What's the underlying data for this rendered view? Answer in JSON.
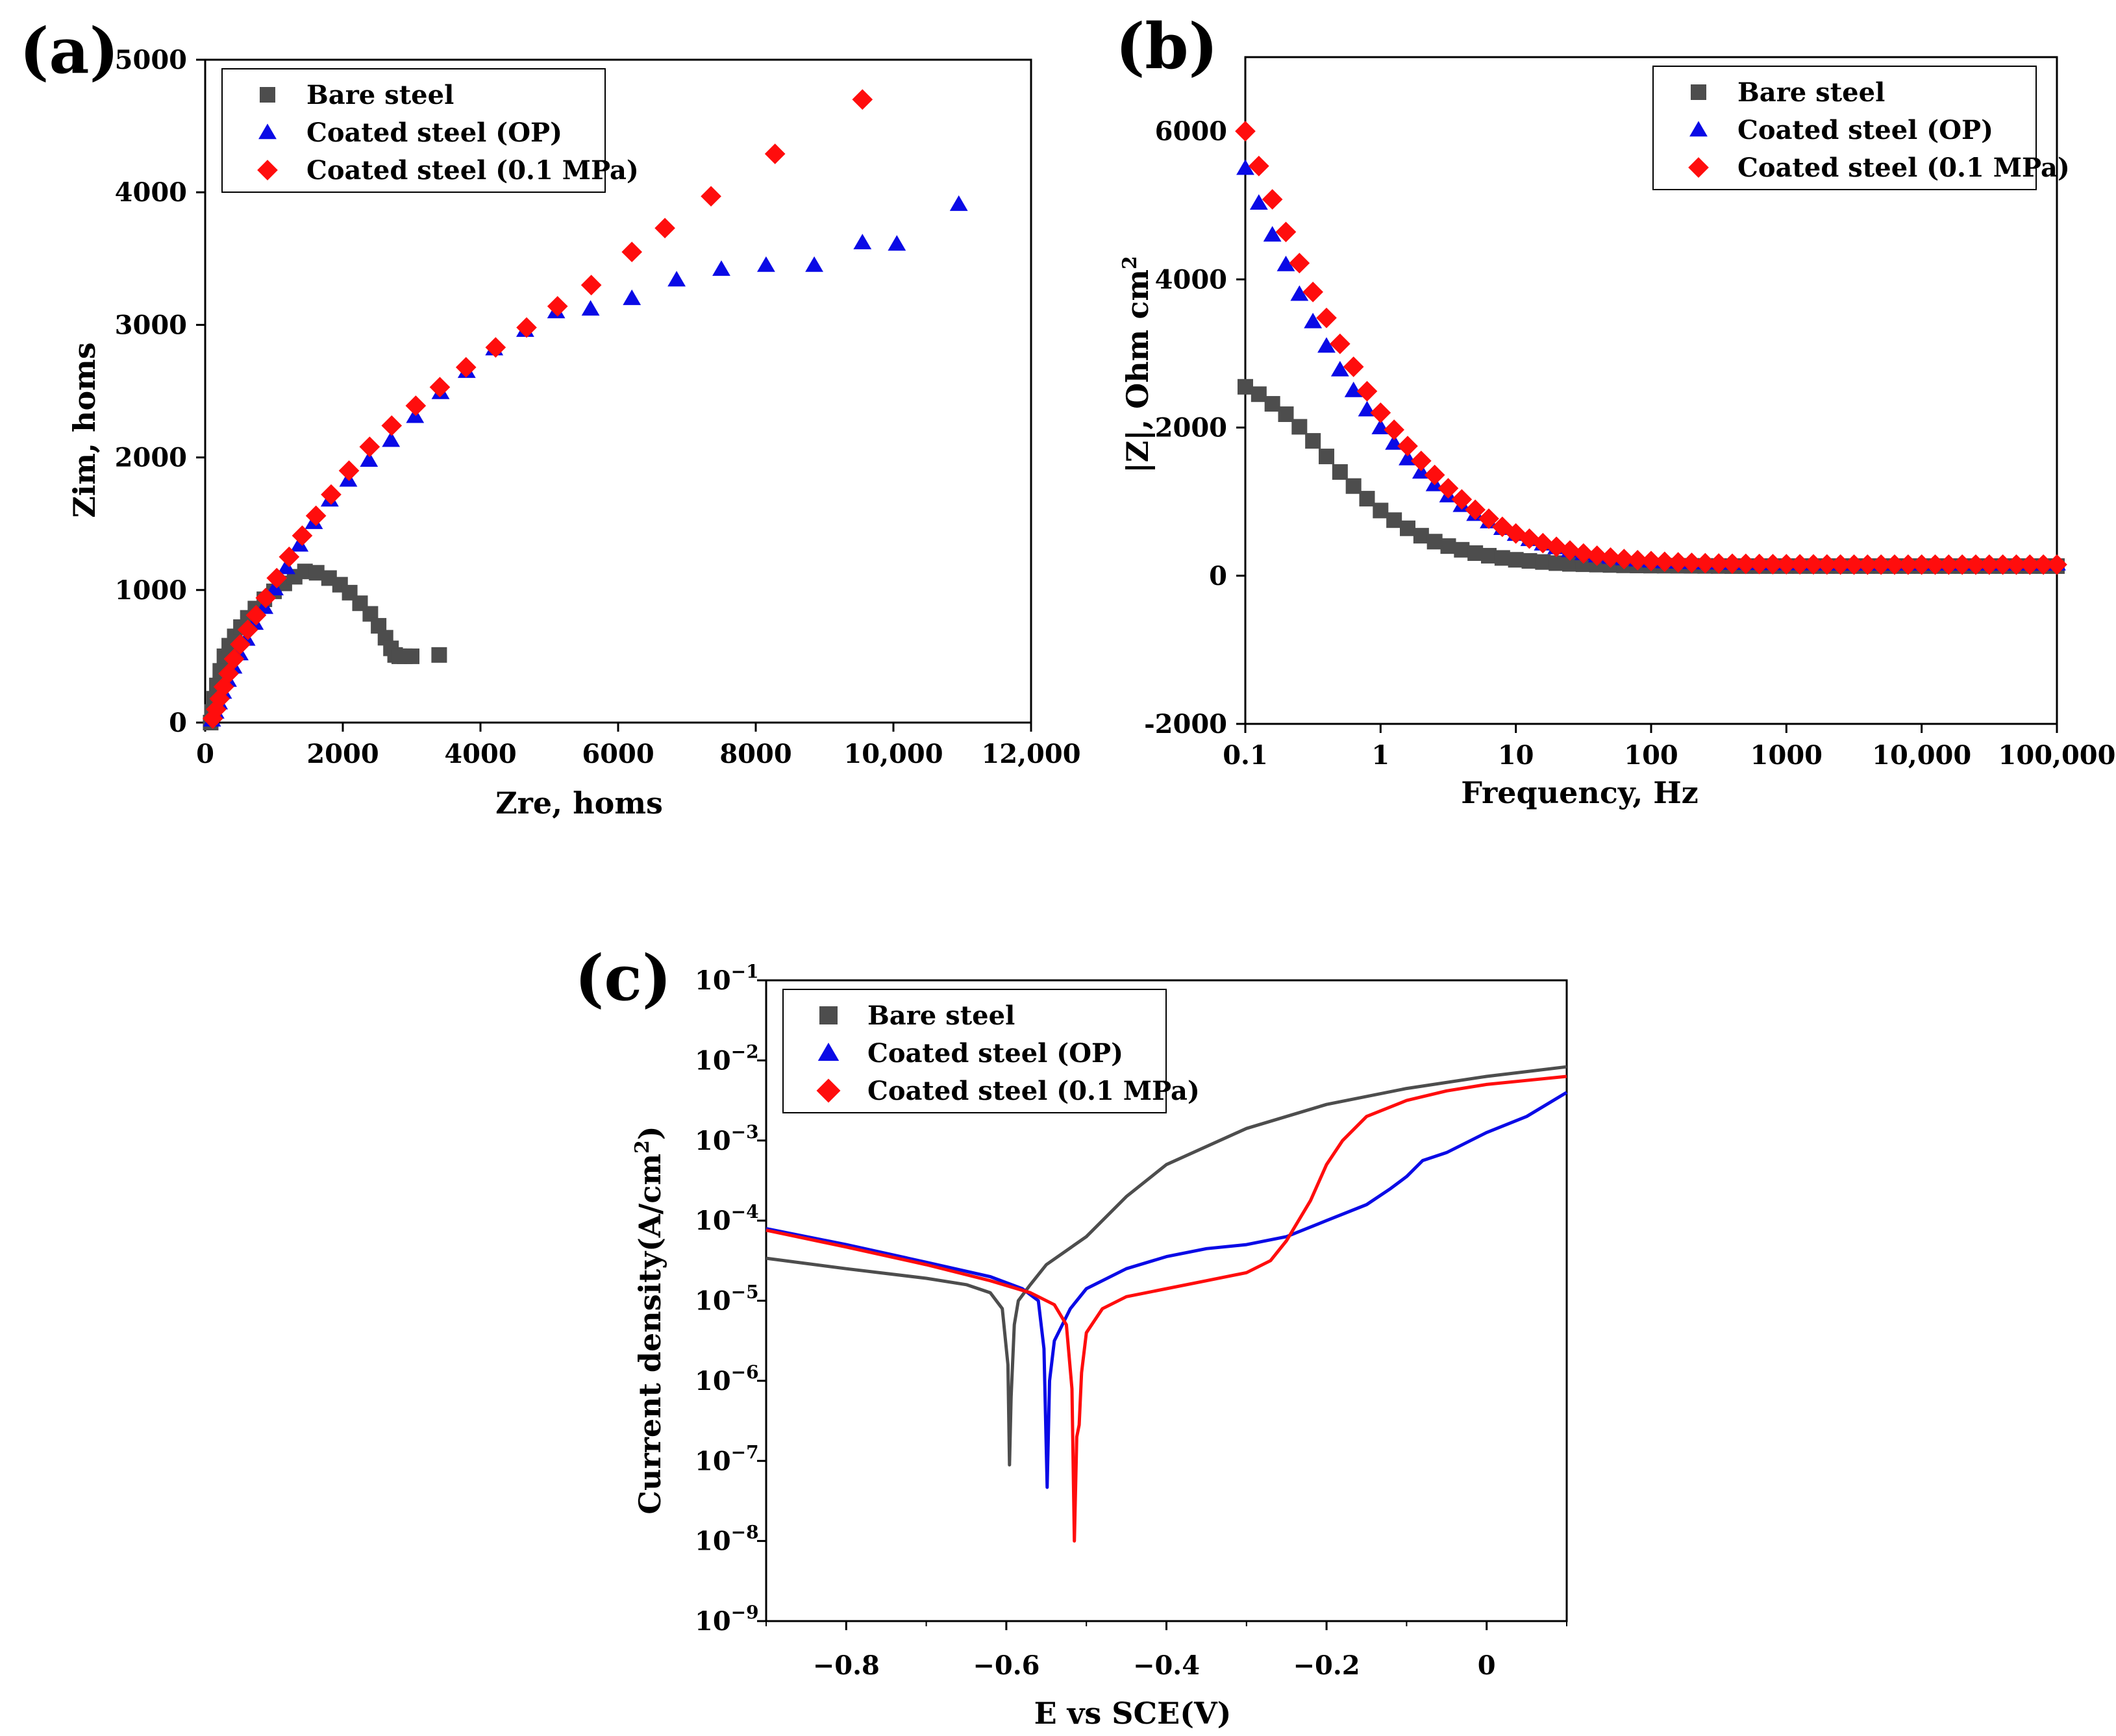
{
  "colors": {
    "bare": "#4d4d4d",
    "op": "#0a0ae6",
    "mpa": "#ff0d0d",
    "axis": "#000000"
  },
  "chart_data": [
    {
      "id": "a",
      "type": "scatter",
      "panel_label": "(a)",
      "xlabel": "Zre, homs",
      "ylabel": "Zim, homs",
      "xlim": [
        0,
        12000
      ],
      "ylim": [
        0,
        5000
      ],
      "xticks": [
        0,
        2000,
        4000,
        6000,
        8000,
        10000,
        12000
      ],
      "xtick_labels": [
        "0",
        "2000",
        "4000",
        "6000",
        "8000",
        "10,000",
        "12,000"
      ],
      "yticks": [
        0,
        1000,
        2000,
        3000,
        4000,
        5000
      ],
      "ytick_labels": [
        "0",
        "1000",
        "2000",
        "3000",
        "4000",
        "5000"
      ],
      "legend": {
        "placement": "top-left",
        "entries": [
          "Bare steel",
          "Coated steel (OP)",
          "Coated steel (0.1 MPa)"
        ]
      },
      "series": [
        {
          "name": "Bare steel",
          "marker": "square",
          "color_key": "bare",
          "x": [
            80,
            100,
            130,
            170,
            220,
            280,
            350,
            430,
            520,
            620,
            730,
            860,
            1000,
            1150,
            1300,
            1450,
            1620,
            1800,
            1960,
            2100,
            2250,
            2400,
            2520,
            2620,
            2700,
            2760,
            2820,
            2900,
            3000,
            3400
          ],
          "y": [
            0,
            80,
            180,
            280,
            390,
            500,
            580,
            650,
            720,
            790,
            860,
            930,
            990,
            1050,
            1100,
            1140,
            1130,
            1090,
            1040,
            980,
            900,
            820,
            730,
            640,
            560,
            510,
            500,
            500,
            500,
            510
          ]
        },
        {
          "name": "Coated steel (OP)",
          "marker": "triangle",
          "color_key": "op",
          "x": [
            100,
            150,
            200,
            260,
            330,
            410,
            500,
            600,
            720,
            860,
            1010,
            1180,
            1370,
            1580,
            1810,
            2080,
            2380,
            2700,
            3050,
            3420,
            3800,
            4200,
            4650,
            5100,
            5600,
            6200,
            6850,
            7500,
            8150,
            8850,
            9550,
            10050,
            10950
          ],
          "y": [
            20,
            80,
            150,
            230,
            320,
            420,
            520,
            630,
            750,
            870,
            1010,
            1170,
            1340,
            1510,
            1680,
            1830,
            1980,
            2130,
            2310,
            2490,
            2650,
            2820,
            2960,
            3100,
            3120,
            3200,
            3340,
            3420,
            3450,
            3450,
            3620,
            3610,
            3910
          ]
        },
        {
          "name": "Coated steel (0.1 MPa)",
          "marker": "diamond",
          "color_key": "mpa",
          "x": [
            110,
            160,
            210,
            270,
            340,
            420,
            510,
            620,
            740,
            880,
            1040,
            1220,
            1410,
            1610,
            1830,
            2090,
            2390,
            2710,
            3060,
            3410,
            3790,
            4220,
            4670,
            5120,
            5610,
            6200,
            6680,
            7350,
            8280,
            9550
          ],
          "y": [
            30,
            100,
            180,
            270,
            370,
            480,
            590,
            700,
            810,
            940,
            1090,
            1250,
            1410,
            1560,
            1720,
            1900,
            2080,
            2240,
            2390,
            2530,
            2680,
            2830,
            2980,
            3140,
            3300,
            3550,
            3730,
            3970,
            4290,
            4700
          ]
        }
      ]
    },
    {
      "id": "b",
      "type": "scatter",
      "panel_label": "(b)",
      "xlabel": "Frequency, Hz",
      "ylabel": "|Z|, Ohm cm",
      "ylabel_sup": "2",
      "xscale": "log",
      "xlim": [
        0.1,
        100000
      ],
      "ylim": [
        -2000,
        7000
      ],
      "xticks": [
        0.1,
        1,
        10,
        100,
        1000,
        10000,
        100000
      ],
      "xtick_labels": [
        "0.1",
        "1",
        "10",
        "100",
        "1000",
        "10,000",
        "100,000"
      ],
      "yticks": [
        -2000,
        0,
        2000,
        4000,
        6000
      ],
      "ytick_labels": [
        "-2000",
        "0",
        "2000",
        "4000",
        "6000"
      ],
      "legend": {
        "placement": "top-right",
        "entries": [
          "Bare steel",
          "Coated steel (OP)",
          "Coated steel (0.1 MPa)"
        ]
      },
      "series": [
        {
          "name": "Bare steel",
          "marker": "square",
          "color_key": "bare",
          "x_log_start": -1,
          "x_log_step": 0.1,
          "count": 61,
          "y": [
            2550,
            2450,
            2320,
            2180,
            2010,
            1820,
            1610,
            1400,
            1210,
            1040,
            880,
            750,
            640,
            540,
            460,
            400,
            350,
            305,
            270,
            240,
            215,
            200,
            185,
            170,
            160,
            155,
            150,
            145,
            140,
            138,
            136,
            135,
            134,
            133,
            132,
            131,
            130,
            130,
            130,
            130,
            130,
            130,
            130,
            130,
            130,
            130,
            130,
            130,
            130,
            130,
            130,
            130,
            130,
            130,
            130,
            130,
            130,
            130,
            130,
            130,
            130
          ]
        },
        {
          "name": "Coated steel (OP)",
          "marker": "triangle",
          "color_key": "op",
          "x_log_start": -1,
          "x_log_step": 0.1,
          "count": 61,
          "y": [
            5500,
            5030,
            4600,
            4200,
            3800,
            3430,
            3100,
            2780,
            2500,
            2240,
            2000,
            1790,
            1580,
            1400,
            1230,
            1080,
            950,
            830,
            730,
            640,
            560,
            490,
            430,
            380,
            340,
            300,
            270,
            250,
            230,
            215,
            200,
            190,
            185,
            180,
            176,
            173,
            170,
            168,
            166,
            165,
            164,
            163,
            162,
            161,
            160,
            160,
            160,
            160,
            160,
            160,
            160,
            160,
            160,
            160,
            160,
            160,
            160,
            160,
            160,
            160,
            160
          ]
        },
        {
          "name": "Coated steel (0.1 MPa)",
          "marker": "diamond",
          "color_key": "mpa",
          "x_log_start": -1,
          "x_log_step": 0.1,
          "count": 61,
          "y": [
            6000,
            5530,
            5080,
            4640,
            4220,
            3830,
            3480,
            3130,
            2820,
            2490,
            2200,
            1970,
            1750,
            1550,
            1360,
            1180,
            1030,
            890,
            770,
            660,
            570,
            500,
            440,
            390,
            340,
            300,
            270,
            245,
            225,
            210,
            198,
            188,
            180,
            174,
            169,
            165,
            162,
            160,
            158,
            156,
            155,
            154,
            153,
            152,
            151,
            150,
            150,
            150,
            150,
            150,
            150,
            150,
            150,
            150,
            150,
            150,
            150,
            150,
            150,
            150,
            150
          ]
        }
      ]
    },
    {
      "id": "c",
      "type": "line",
      "panel_label": "(c)",
      "xlabel": "E vs SCE(V)",
      "ylabel": "Current density(A/cm",
      "ylabel_sup": "2",
      "ylabel_tail": ")",
      "yscale": "log",
      "xlim": [
        -0.9,
        0.1
      ],
      "ylim_exp": [
        -9,
        -1
      ],
      "xticks": [
        -0.8,
        -0.6,
        -0.4,
        -0.2,
        0
      ],
      "xtick_labels": [
        "−0.8",
        "−0.6",
        "−0.4",
        "−0.2",
        "0"
      ],
      "ytick_exponents": [
        -1,
        -2,
        -3,
        -4,
        -5,
        -6,
        -7,
        -8,
        -9
      ],
      "ytick_labels": [
        "10",
        "10",
        "10",
        "10",
        "10",
        "10",
        "10",
        "10",
        "10"
      ],
      "ytick_sups": [
        "−1",
        "−2",
        "−3",
        "−4",
        "−5",
        "−6",
        "−7",
        "−8",
        "−9"
      ],
      "legend": {
        "placement": "top-left",
        "entries": [
          "Bare steel",
          "Coated steel (OP)",
          "Coated steel (0.1 MPa)"
        ]
      },
      "series": [
        {
          "name": "Bare steel",
          "color_key": "bare",
          "E": [
            -0.9,
            -0.8,
            -0.7,
            -0.65,
            -0.62,
            -0.605,
            -0.598,
            -0.596,
            -0.594,
            -0.59,
            -0.585,
            -0.57,
            -0.55,
            -0.5,
            -0.45,
            -0.4,
            -0.3,
            -0.2,
            -0.1,
            0,
            0.1
          ],
          "log_i": [
            -4.47,
            -4.6,
            -4.72,
            -4.8,
            -4.9,
            -5.1,
            -5.8,
            -7.05,
            -6.2,
            -5.3,
            -5.0,
            -4.8,
            -4.55,
            -4.2,
            -3.7,
            -3.3,
            -2.85,
            -2.55,
            -2.35,
            -2.2,
            -2.08
          ]
        },
        {
          "name": "Coated steel (OP)",
          "color_key": "op",
          "E": [
            -0.9,
            -0.8,
            -0.7,
            -0.62,
            -0.58,
            -0.56,
            -0.553,
            -0.549,
            -0.546,
            -0.54,
            -0.52,
            -0.5,
            -0.45,
            -0.4,
            -0.35,
            -0.3,
            -0.25,
            -0.2,
            -0.15,
            -0.12,
            -0.1,
            -0.08,
            -0.05,
            0,
            0.05,
            0.1
          ],
          "log_i": [
            -4.1,
            -4.3,
            -4.52,
            -4.7,
            -4.85,
            -5.0,
            -5.6,
            -7.33,
            -6.0,
            -5.5,
            -5.1,
            -4.85,
            -4.6,
            -4.45,
            -4.35,
            -4.3,
            -4.2,
            -4.0,
            -3.8,
            -3.6,
            -3.45,
            -3.25,
            -3.15,
            -2.9,
            -2.7,
            -2.4
          ]
        },
        {
          "name": "Coated steel (0.1 MPa)",
          "color_key": "mpa",
          "E": [
            -0.9,
            -0.8,
            -0.7,
            -0.62,
            -0.57,
            -0.54,
            -0.525,
            -0.518,
            -0.515,
            -0.512,
            -0.509,
            -0.506,
            -0.5,
            -0.48,
            -0.45,
            -0.4,
            -0.35,
            -0.3,
            -0.27,
            -0.25,
            -0.22,
            -0.2,
            -0.18,
            -0.15,
            -0.1,
            -0.05,
            0,
            0.05,
            0.1
          ],
          "log_i": [
            -4.12,
            -4.33,
            -4.55,
            -4.75,
            -4.9,
            -5.05,
            -5.3,
            -6.1,
            -8.0,
            -6.7,
            -6.55,
            -5.9,
            -5.4,
            -5.1,
            -4.95,
            -4.85,
            -4.75,
            -4.65,
            -4.5,
            -4.25,
            -3.75,
            -3.3,
            -3.0,
            -2.7,
            -2.5,
            -2.38,
            -2.3,
            -2.25,
            -2.2
          ]
        }
      ]
    }
  ]
}
